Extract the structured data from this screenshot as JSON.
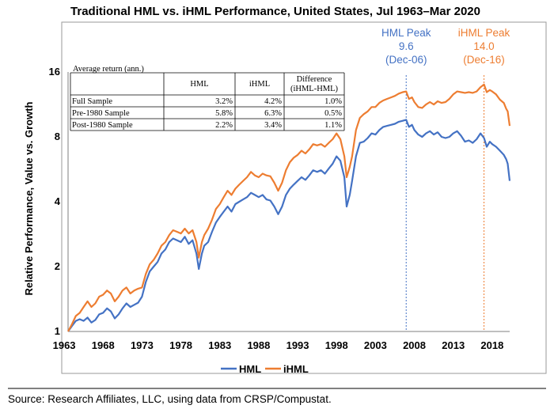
{
  "chart_data": {
    "type": "line",
    "title": "Traditional HML vs. iHML Performance, United States, Jul 1963–Mar 2020",
    "ylabel": "Relative Performance, Value vs. Growth",
    "xlabel": "",
    "y_scale": "log2",
    "ylim": [
      1,
      16
    ],
    "xlim": [
      1963.5,
      2020.25
    ],
    "y_ticks": [
      1,
      2,
      4,
      8,
      16
    ],
    "x_ticks": [
      1963,
      1968,
      1973,
      1978,
      1983,
      1988,
      1993,
      1998,
      2003,
      2008,
      2013,
      2018
    ],
    "grid": false,
    "legend_position": "bottom",
    "colors": {
      "HML": "#4472C4",
      "iHML": "#ED7D31"
    },
    "series": [
      {
        "name": "HML",
        "color": "#4472C4",
        "x": [
          1963.5,
          1964.0,
          1964.5,
          1965.0,
          1965.5,
          1966.0,
          1966.5,
          1967.0,
          1967.5,
          1968.0,
          1968.5,
          1969.0,
          1969.5,
          1970.0,
          1970.5,
          1971.0,
          1971.5,
          1972.0,
          1972.5,
          1973.0,
          1973.5,
          1974.0,
          1974.5,
          1975.0,
          1975.5,
          1976.0,
          1976.5,
          1977.0,
          1977.5,
          1978.0,
          1978.5,
          1979.0,
          1979.5,
          1980.0,
          1980.3,
          1980.7,
          1981.0,
          1981.5,
          1982.0,
          1982.5,
          1983.0,
          1983.5,
          1984.0,
          1984.5,
          1985.0,
          1985.5,
          1986.0,
          1986.5,
          1987.0,
          1987.5,
          1988.0,
          1988.5,
          1989.0,
          1989.5,
          1990.0,
          1990.5,
          1991.0,
          1991.5,
          1992.0,
          1992.5,
          1993.0,
          1993.5,
          1994.0,
          1994.5,
          1995.0,
          1995.5,
          1996.0,
          1996.5,
          1997.0,
          1997.5,
          1998.0,
          1998.5,
          1999.0,
          1999.3,
          1999.7,
          2000.0,
          2000.5,
          2001.0,
          2001.5,
          2002.0,
          2002.5,
          2003.0,
          2003.5,
          2004.0,
          2004.5,
          2005.0,
          2005.5,
          2006.0,
          2006.5,
          2006.95,
          2007.3,
          2007.7,
          2008.0,
          2008.5,
          2009.0,
          2009.5,
          2010.0,
          2010.5,
          2011.0,
          2011.5,
          2012.0,
          2012.5,
          2013.0,
          2013.5,
          2014.0,
          2014.5,
          2015.0,
          2015.5,
          2016.0,
          2016.5,
          2016.95,
          2017.3,
          2017.7,
          2018.0,
          2018.5,
          2019.0,
          2019.5,
          2019.8,
          2020.0,
          2020.25
        ],
        "values": [
          1.0,
          1.06,
          1.12,
          1.14,
          1.12,
          1.16,
          1.1,
          1.13,
          1.2,
          1.22,
          1.28,
          1.24,
          1.15,
          1.2,
          1.28,
          1.35,
          1.3,
          1.33,
          1.36,
          1.45,
          1.7,
          1.9,
          2.0,
          2.1,
          2.3,
          2.4,
          2.6,
          2.7,
          2.65,
          2.6,
          2.75,
          2.55,
          2.65,
          2.3,
          1.95,
          2.3,
          2.5,
          2.6,
          2.9,
          3.2,
          3.4,
          3.6,
          3.8,
          3.6,
          3.9,
          4.0,
          4.1,
          4.2,
          4.4,
          4.3,
          4.2,
          4.3,
          4.1,
          4.05,
          3.8,
          3.5,
          3.8,
          4.3,
          4.6,
          4.8,
          5.0,
          5.2,
          5.05,
          5.3,
          5.6,
          5.5,
          5.6,
          5.4,
          5.7,
          6.0,
          6.5,
          6.2,
          5.2,
          3.8,
          4.3,
          5.0,
          6.5,
          7.5,
          7.6,
          7.9,
          8.3,
          8.2,
          8.6,
          8.9,
          9.0,
          9.1,
          9.2,
          9.4,
          9.5,
          9.6,
          8.9,
          9.1,
          8.6,
          8.2,
          8.0,
          8.3,
          8.5,
          8.2,
          8.4,
          8.0,
          7.9,
          8.0,
          8.3,
          8.5,
          8.1,
          7.6,
          7.7,
          7.5,
          7.8,
          8.3,
          7.9,
          7.2,
          7.6,
          7.4,
          7.2,
          6.9,
          6.6,
          6.3,
          6.0,
          5.0
        ]
      },
      {
        "name": "iHML",
        "color": "#ED7D31",
        "x": [
          1963.5,
          1964.0,
          1964.5,
          1965.0,
          1965.5,
          1966.0,
          1966.5,
          1967.0,
          1967.5,
          1968.0,
          1968.5,
          1969.0,
          1969.5,
          1970.0,
          1970.5,
          1971.0,
          1971.5,
          1972.0,
          1972.5,
          1973.0,
          1973.5,
          1974.0,
          1974.5,
          1975.0,
          1975.5,
          1976.0,
          1976.5,
          1977.0,
          1977.5,
          1978.0,
          1978.5,
          1979.0,
          1979.5,
          1980.0,
          1980.3,
          1980.7,
          1981.0,
          1981.5,
          1982.0,
          1982.5,
          1983.0,
          1983.5,
          1984.0,
          1984.5,
          1985.0,
          1985.5,
          1986.0,
          1986.5,
          1987.0,
          1987.5,
          1988.0,
          1988.5,
          1989.0,
          1989.5,
          1990.0,
          1990.5,
          1991.0,
          1991.5,
          1992.0,
          1992.5,
          1993.0,
          1993.5,
          1994.0,
          1994.5,
          1995.0,
          1995.5,
          1996.0,
          1996.5,
          1997.0,
          1997.5,
          1998.0,
          1998.5,
          1999.0,
          1999.3,
          1999.7,
          2000.0,
          2000.5,
          2001.0,
          2001.5,
          2002.0,
          2002.5,
          2003.0,
          2003.5,
          2004.0,
          2004.5,
          2005.0,
          2005.5,
          2006.0,
          2006.5,
          2006.95,
          2007.3,
          2007.7,
          2008.0,
          2008.5,
          2009.0,
          2009.5,
          2010.0,
          2010.5,
          2011.0,
          2011.5,
          2012.0,
          2012.5,
          2013.0,
          2013.5,
          2014.0,
          2014.5,
          2015.0,
          2015.5,
          2016.0,
          2016.5,
          2016.95,
          2017.3,
          2017.7,
          2018.0,
          2018.5,
          2019.0,
          2019.5,
          2019.8,
          2020.0,
          2020.25
        ],
        "values": [
          1.0,
          1.08,
          1.18,
          1.22,
          1.3,
          1.38,
          1.3,
          1.35,
          1.45,
          1.48,
          1.55,
          1.5,
          1.38,
          1.45,
          1.55,
          1.6,
          1.5,
          1.55,
          1.58,
          1.6,
          1.85,
          2.05,
          2.15,
          2.3,
          2.5,
          2.6,
          2.8,
          2.95,
          2.9,
          2.85,
          3.0,
          2.85,
          2.95,
          2.6,
          2.2,
          2.6,
          2.8,
          3.0,
          3.3,
          3.7,
          3.9,
          4.2,
          4.5,
          4.3,
          4.6,
          4.8,
          5.0,
          5.2,
          5.5,
          5.3,
          5.2,
          5.4,
          5.3,
          5.25,
          4.9,
          4.5,
          4.9,
          5.6,
          6.1,
          6.4,
          6.6,
          6.9,
          6.7,
          7.0,
          7.4,
          7.3,
          7.4,
          7.2,
          7.5,
          7.8,
          8.3,
          7.8,
          6.5,
          5.2,
          5.8,
          6.5,
          8.6,
          9.8,
          10.2,
          10.5,
          11.0,
          11.0,
          11.5,
          11.8,
          12.0,
          12.2,
          12.4,
          12.7,
          12.9,
          13.0,
          12.0,
          12.2,
          11.6,
          11.0,
          10.9,
          11.3,
          11.6,
          11.3,
          11.7,
          11.5,
          11.6,
          12.0,
          12.6,
          13.0,
          12.9,
          12.8,
          12.9,
          12.8,
          13.0,
          13.6,
          14.0,
          12.9,
          13.2,
          13.0,
          12.6,
          11.9,
          11.5,
          10.8,
          10.5,
          9.0
        ]
      }
    ],
    "annotations": [
      {
        "label_lines": [
          "HML Peak",
          "9.6",
          "(Dec-06)"
        ],
        "x": 2006.95,
        "value": 9.6,
        "series": "HML",
        "color": "#4472C4"
      },
      {
        "label_lines": [
          "iHML Peak",
          "14.0",
          "(Dec-16)"
        ],
        "x": 2016.95,
        "value": 14.0,
        "series": "iHML",
        "color": "#ED7D31"
      }
    ],
    "table": {
      "caption": "Average return (ann.)",
      "columns": [
        "",
        "HML",
        "iHML",
        "Difference (iHML-HML)"
      ],
      "column_header_lines": [
        [
          ""
        ],
        [
          "HML"
        ],
        [
          "iHML"
        ],
        [
          "Difference",
          "(iHML-HML)"
        ]
      ],
      "rows": [
        [
          "Full Sample",
          "3.2%",
          "4.2%",
          "1.0%"
        ],
        [
          "Pre-1980 Sample",
          "5.8%",
          "6.3%",
          "0.5%"
        ],
        [
          "Post-1980 Sample",
          "2.2%",
          "3.4%",
          "1.1%"
        ]
      ]
    },
    "source": "Source: Research Affiliates, LLC, using data from CRSP/Compustat."
  }
}
